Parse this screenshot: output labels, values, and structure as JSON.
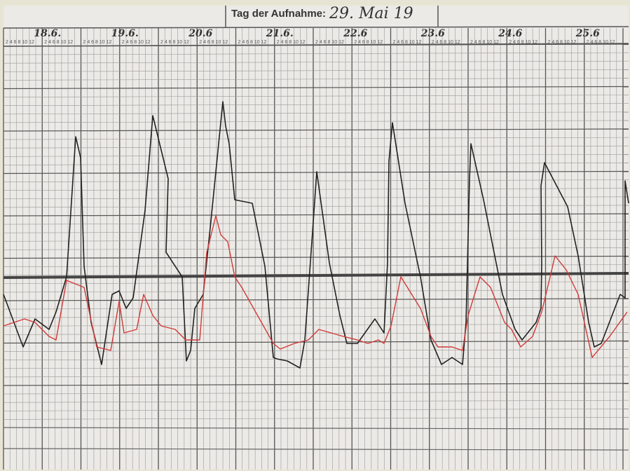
{
  "header": {
    "label": "Tag der Aufnahme:",
    "date": "29. Mai 19"
  },
  "days": [
    "18.6.",
    "19.6.",
    "20.6",
    "21.6.",
    "22.6",
    "23.6",
    "24.6",
    "25.6"
  ],
  "hour_scale": "2 4 6 8 10 12"
}
